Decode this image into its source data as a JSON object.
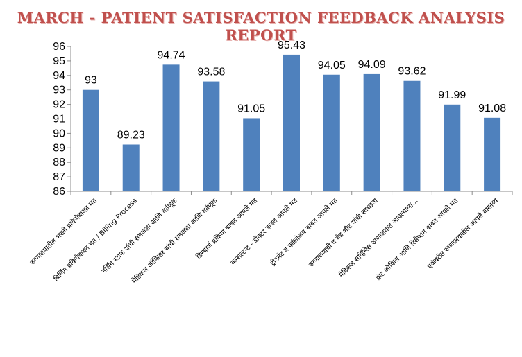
{
  "chart_data": {
    "type": "bar",
    "title": "MARCH - PATIENT SATISFACTION FEEDBACK ANALYSIS REPORT",
    "xlabel": "",
    "ylabel": "",
    "ylim": [
      86,
      96
    ],
    "yticks": [
      86,
      87,
      88,
      89,
      90,
      91,
      92,
      93,
      94,
      95,
      96
    ],
    "grid": false,
    "legend": "none",
    "bar_color": "#4f81bd",
    "categories": [
      "रुग्णालयातील भरती प्रक्रियेबाबत मत",
      "बिलिंग प्रक्रियेबाबत मत / Billing Process",
      "नर्सिंग स्टाफ यांची समजला आणि वर्तणूक",
      "मेडिकल ऑफिसर यांची समजला आणि वर्तणूक",
      "डिस्चार्ज प्रक्रिया बाबत आपले मत",
      "कन्सल्टन्ट - डॉक्टर बाबत आपले मत",
      "ट्रीटमेंट व फॉलोअप बाबत आपले मत",
      "रुग्णालयाची व बेड शीट यांची स्वच्छता",
      "मेडिकल सर्व्हिसेस रुग्णालयात आपल्याला...",
      "फ्रंट ऑफिस आणि रिसेप्शन बाबत आपले मत",
      "एकंदरीत रुग्णालयातील आपले वास्तव्य"
    ],
    "values": [
      93,
      89.23,
      94.74,
      93.58,
      91.05,
      95.43,
      94.05,
      94.09,
      93.62,
      91.99,
      91.08
    ],
    "data_labels": [
      "93",
      "89.23",
      "94.74",
      "93.58",
      "91.05",
      "95.43",
      "94.05",
      "94.09",
      "93.62",
      "91.99",
      "91.08"
    ]
  }
}
